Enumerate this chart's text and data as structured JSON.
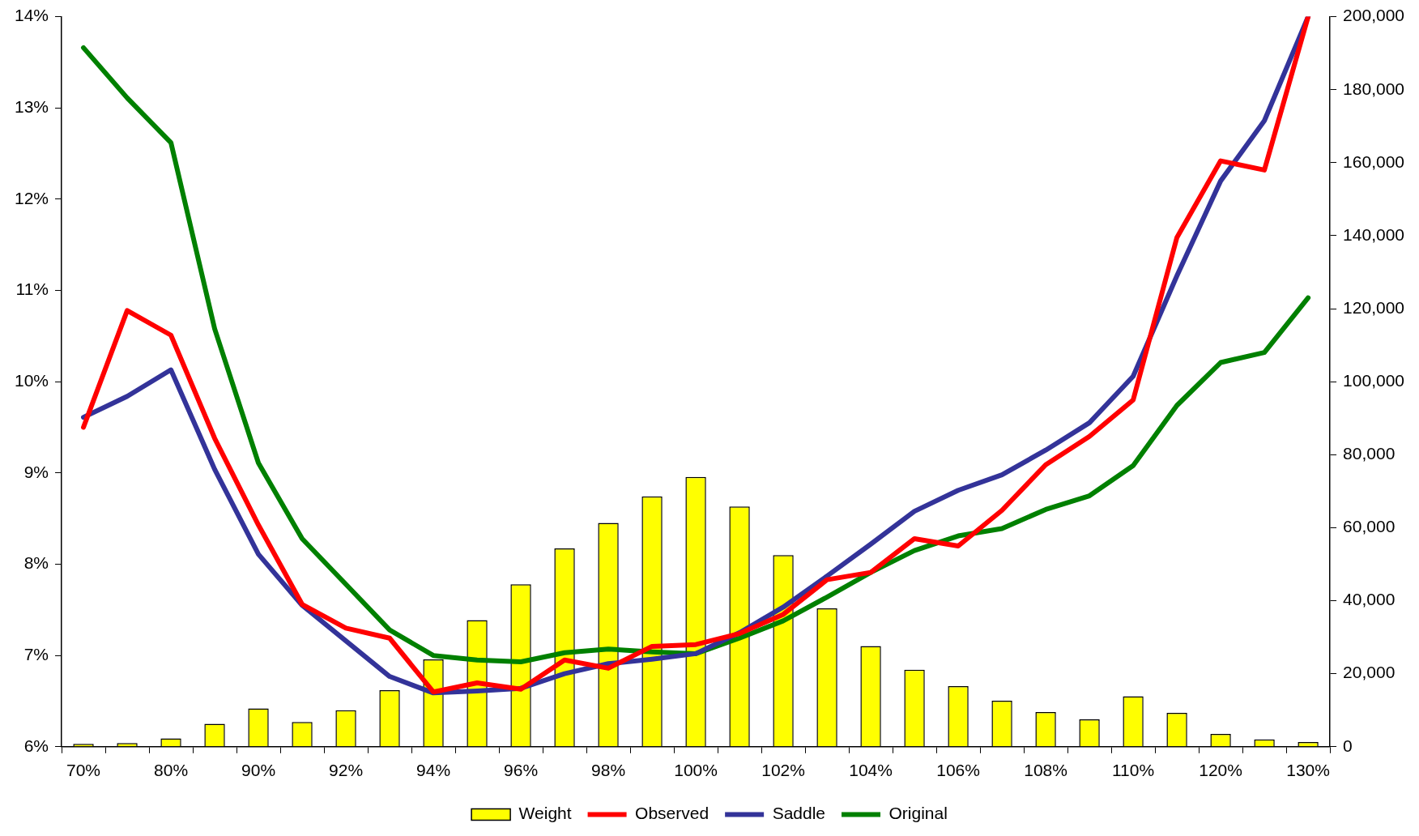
{
  "chart_data": {
    "type": "bar",
    "categories": [
      "70%",
      null,
      "80%",
      null,
      "90%",
      null,
      "92%",
      null,
      "94%",
      null,
      "96%",
      null,
      "98%",
      null,
      "100%",
      null,
      "102%",
      null,
      "104%",
      null,
      "106%",
      null,
      "108%",
      null,
      "110%",
      null,
      "120%",
      null,
      "130%"
    ],
    "series": [
      {
        "name": "Weight",
        "axis": "y2",
        "color": "#ffff00",
        "values": [
          800,
          1000,
          2300,
          6300,
          10500,
          6800,
          10000,
          15500,
          23900,
          34700,
          44500,
          54300,
          61300,
          68600,
          73900,
          65800,
          52500,
          37900,
          27600,
          21100,
          16600,
          12600,
          9500,
          7500,
          13800,
          9300,
          3500,
          2000,
          1300
        ]
      },
      {
        "name": "Observed",
        "type": "line",
        "color": "#ff0000",
        "values": [
          9.5,
          10.78,
          10.51,
          9.38,
          8.43,
          7.56,
          7.3,
          7.19,
          6.6,
          6.7,
          6.63,
          6.95,
          6.86,
          7.1,
          7.12,
          7.24,
          7.45,
          7.83,
          7.91,
          8.28,
          8.2,
          8.59,
          9.09,
          9.4,
          9.8,
          11.58,
          12.42,
          12.32,
          14.0
        ]
      },
      {
        "name": "Saddle",
        "type": "line",
        "color": "#333399",
        "values": [
          9.61,
          9.84,
          10.13,
          9.04,
          8.11,
          7.55,
          7.16,
          6.77,
          6.59,
          6.61,
          6.64,
          6.8,
          6.91,
          6.96,
          7.02,
          7.25,
          7.53,
          7.87,
          8.22,
          8.58,
          8.81,
          8.98,
          9.25,
          9.55,
          10.06,
          11.16,
          12.2,
          12.86,
          14.0
        ]
      },
      {
        "name": "Original",
        "type": "line",
        "color": "#008000",
        "values": [
          13.66,
          13.11,
          12.62,
          10.58,
          9.11,
          8.28,
          7.78,
          7.28,
          7.0,
          6.95,
          6.93,
          7.03,
          7.07,
          7.04,
          7.02,
          7.19,
          7.38,
          7.64,
          7.91,
          8.15,
          8.31,
          8.39,
          8.6,
          8.75,
          9.08,
          9.74,
          10.21,
          10.32,
          10.92
        ]
      }
    ],
    "ylim": [
      6,
      14
    ],
    "yticks": [
      {
        "value": 6,
        "label": "6%"
      },
      {
        "value": 7,
        "label": "7%"
      },
      {
        "value": 8,
        "label": "8%"
      },
      {
        "value": 9,
        "label": "9%"
      },
      {
        "value": 10,
        "label": "10%"
      },
      {
        "value": 11,
        "label": "11%"
      },
      {
        "value": 12,
        "label": "12%"
      },
      {
        "value": 13,
        "label": "13%"
      },
      {
        "value": 14,
        "label": "14%"
      }
    ],
    "y2lim": [
      0,
      200000
    ],
    "y2ticks": [
      {
        "value": 0,
        "label": "0"
      },
      {
        "value": 20000,
        "label": "20,000"
      },
      {
        "value": 40000,
        "label": "40,000"
      },
      {
        "value": 60000,
        "label": "60,000"
      },
      {
        "value": 80000,
        "label": "80,000"
      },
      {
        "value": 100000,
        "label": "100,000"
      },
      {
        "value": 120000,
        "label": "120,000"
      },
      {
        "value": 140000,
        "label": "140,000"
      },
      {
        "value": 160000,
        "label": "160,000"
      },
      {
        "value": 180000,
        "label": "180,000"
      },
      {
        "value": 200000,
        "label": "200,000"
      }
    ],
    "legend": "bottom",
    "marker": "none",
    "line_style": "solid"
  }
}
